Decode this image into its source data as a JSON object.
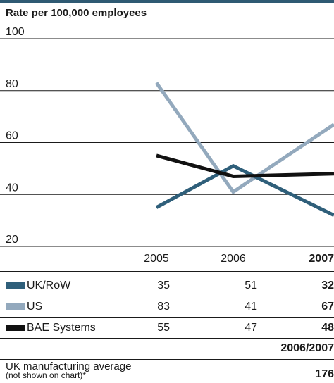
{
  "chart_data": {
    "type": "line",
    "title": "Rate per 100,000 employees",
    "ylim": [
      20,
      100
    ],
    "yticks": [
      100,
      80,
      60,
      40,
      20
    ],
    "grid": true,
    "categories": [
      "2005",
      "2006",
      "2007"
    ],
    "series": [
      {
        "name": "UK/RoW",
        "color": "#2f5f7a",
        "values": [
          35,
          51,
          32
        ]
      },
      {
        "name": "US",
        "color": "#93a9bd",
        "values": [
          83,
          41,
          67
        ]
      },
      {
        "name": "BAE Systems",
        "color": "#111111",
        "values": [
          55,
          47,
          48
        ]
      }
    ]
  },
  "table": {
    "period_label": "2006/2007",
    "average_label": "UK manufacturing average",
    "average_note": "(not shown on chart)*",
    "average_value": "176"
  }
}
